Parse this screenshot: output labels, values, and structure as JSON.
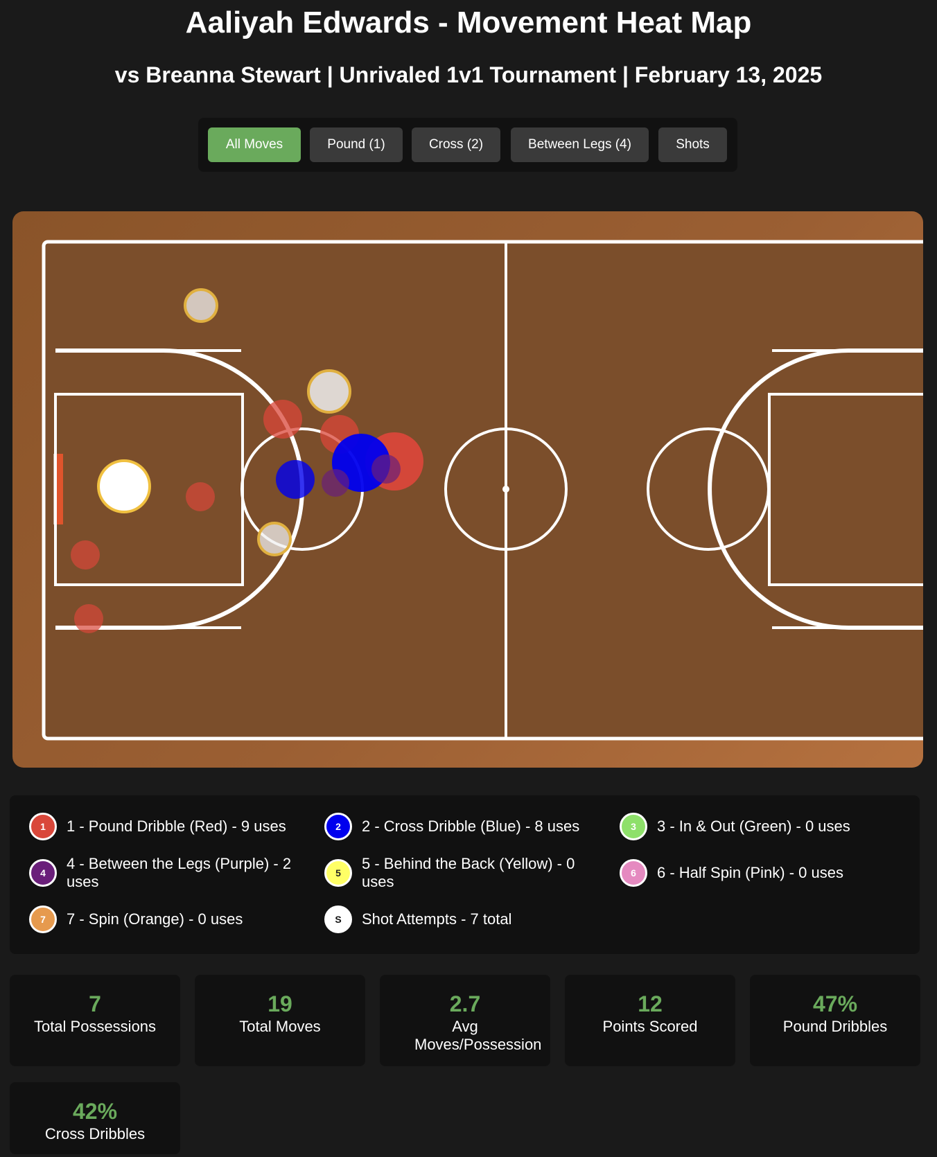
{
  "header": {
    "title": "Aaliyah Edwards - Movement Heat Map",
    "subtitle": "vs Breanna Stewart | Unrivaled 1v1 Tournament | February 13, 2025"
  },
  "filters": [
    {
      "label": "All Moves",
      "active": true
    },
    {
      "label": "Pound (1)",
      "active": false
    },
    {
      "label": "Cross (2)",
      "active": false
    },
    {
      "label": "Between Legs (4)",
      "active": false
    },
    {
      "label": "Shots",
      "active": false
    }
  ],
  "colors": {
    "pound": "#d9473a",
    "cross": "#0000ee",
    "in_out": "#8ee06a",
    "between_legs": "#6a1f7a",
    "behind_back": "#ffff66",
    "half_spin": "#e58ac0",
    "spin": "#e69a4e",
    "shot": "#ffffff",
    "accent": "#6aaa5c",
    "court_floor": "#7b4e2b"
  },
  "legend": [
    {
      "key": "1",
      "label": "1 - Pound Dribble (Red) - 9 uses",
      "color": "#d9473a",
      "text_color": "#ffffff"
    },
    {
      "key": "2",
      "label": "2 - Cross Dribble (Blue) - 8 uses",
      "color": "#0000ee",
      "text_color": "#ffffff"
    },
    {
      "key": "3",
      "label": "3 - In & Out (Green) - 0 uses",
      "color": "#8ee06a",
      "text_color": "#ffffff"
    },
    {
      "key": "4",
      "label": "4 - Between the Legs (Purple) - 2 uses",
      "color": "#6a1f7a",
      "text_color": "#ffffff"
    },
    {
      "key": "5",
      "label": "5 - Behind the Back (Yellow) - 0 uses",
      "color": "#ffff66",
      "text_color": "#222222"
    },
    {
      "key": "6",
      "label": "6 - Half Spin (Pink) - 0 uses",
      "color": "#e58ac0",
      "text_color": "#ffffff"
    },
    {
      "key": "7",
      "label": "7 - Spin (Orange) - 0 uses",
      "color": "#e69a4e",
      "text_color": "#ffffff"
    },
    {
      "key": "S",
      "label": "Shot Attempts - 7 total",
      "color": "#ffffff",
      "text_color": "#111111"
    }
  ],
  "stats": [
    {
      "value": "7",
      "label": "Total Possessions"
    },
    {
      "value": "19",
      "label": "Total Moves"
    },
    {
      "value": "2.7",
      "label": "Avg Moves/Possession"
    },
    {
      "value": "12",
      "label": "Points Scored"
    },
    {
      "value": "47%",
      "label": "Pound Dribbles"
    },
    {
      "value": "42%",
      "label": "Cross Dribbles"
    }
  ]
}
